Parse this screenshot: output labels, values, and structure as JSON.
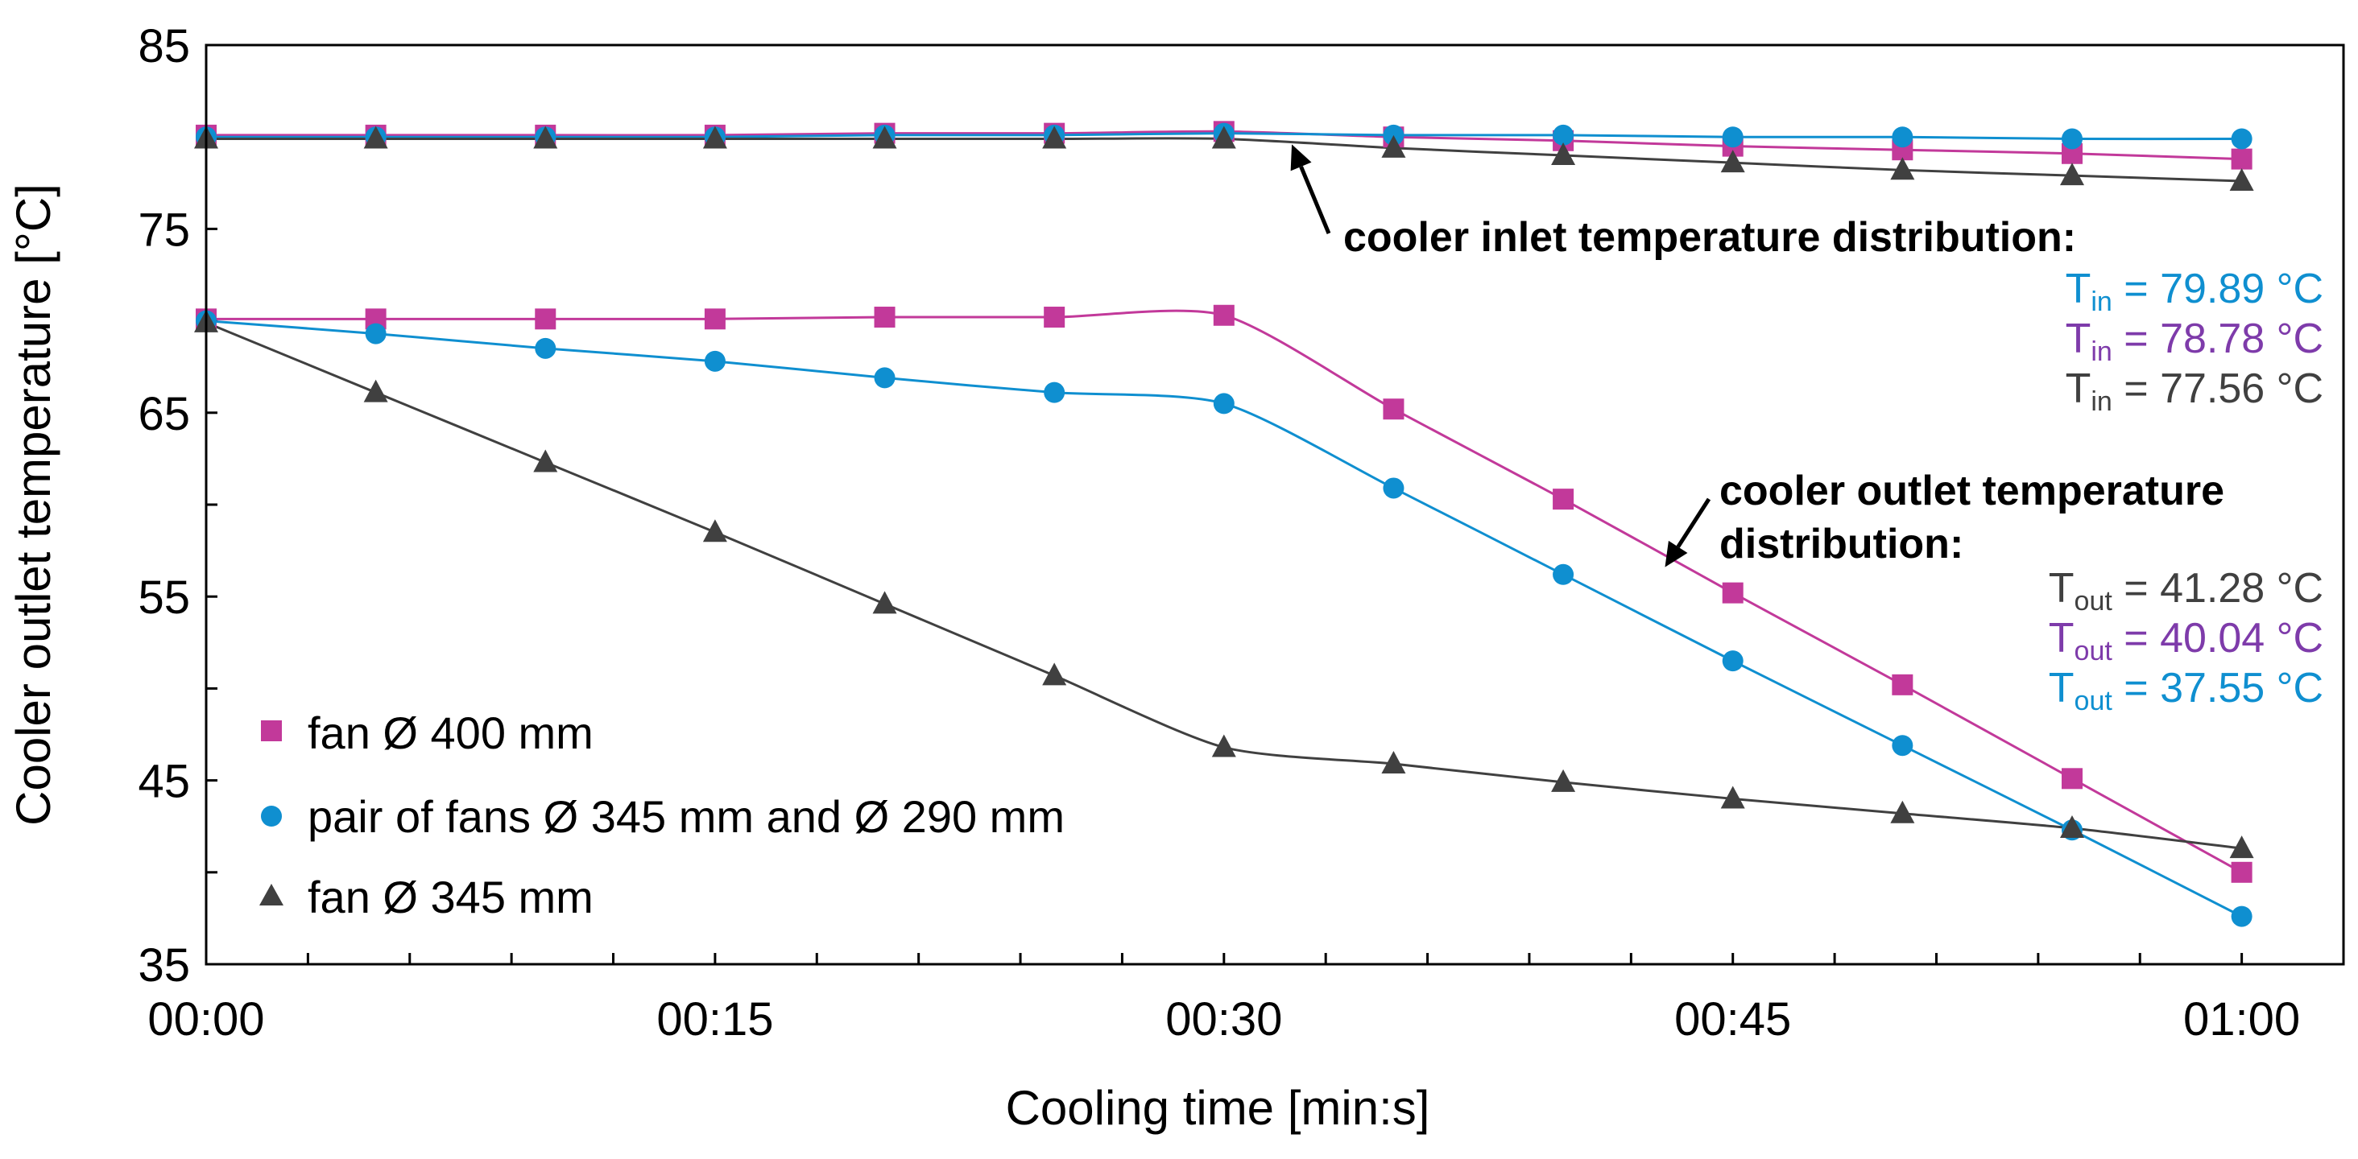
{
  "chart_data": {
    "type": "line",
    "xlabel": "Cooling time [min:s]",
    "ylabel": "Cooler outlet temperature [°C]",
    "xlim": [
      0,
      63
    ],
    "ylim": [
      35,
      85
    ],
    "x_ticks": [
      {
        "value": 0,
        "label": "00:00"
      },
      {
        "value": 15,
        "label": "00:15"
      },
      {
        "value": 30,
        "label": "00:30"
      },
      {
        "value": 45,
        "label": "00:45"
      },
      {
        "value": 60,
        "label": "01:00"
      }
    ],
    "x_minor_step": 3,
    "y_ticks": [
      {
        "value": 35,
        "label": "35"
      },
      {
        "value": 45,
        "label": "45"
      },
      {
        "value": 55,
        "label": "55"
      },
      {
        "value": 65,
        "label": "65"
      },
      {
        "value": 75,
        "label": "75"
      },
      {
        "value": 85,
        "label": "85"
      }
    ],
    "y_minor_step": 5,
    "x": [
      0,
      5,
      10,
      15,
      20,
      25,
      30,
      35,
      40,
      45,
      50,
      55,
      60
    ],
    "series": [
      {
        "name": "fan Ø 400 mm",
        "role": "inlet",
        "color": "#C2399A",
        "marker": "square",
        "values": [
          80.1,
          80.1,
          80.1,
          80.1,
          80.2,
          80.2,
          80.3,
          80.0,
          79.8,
          79.5,
          79.3,
          79.1,
          78.8
        ]
      },
      {
        "name": "pair of fans Ø 345 mm and Ø 290 mm",
        "role": "inlet",
        "color": "#0F8FD0",
        "marker": "circle",
        "values": [
          80.0,
          80.0,
          80.0,
          80.0,
          80.1,
          80.1,
          80.2,
          80.1,
          80.1,
          80.0,
          80.0,
          79.9,
          79.9
        ]
      },
      {
        "name": "fan Ø 345 mm",
        "role": "inlet",
        "color": "#404040",
        "marker": "triangle",
        "values": [
          79.9,
          79.9,
          79.9,
          79.9,
          79.9,
          79.9,
          79.9,
          79.4,
          79.0,
          78.6,
          78.2,
          77.9,
          77.6
        ]
      },
      {
        "name": "fan Ø 400 mm",
        "role": "outlet",
        "color": "#C2399A",
        "marker": "square",
        "values": [
          70.1,
          70.1,
          70.1,
          70.1,
          70.2,
          70.2,
          70.3,
          65.2,
          60.3,
          55.2,
          50.2,
          45.1,
          40.0
        ]
      },
      {
        "name": "pair of fans Ø 345 mm and Ø 290 mm",
        "role": "outlet",
        "color": "#0F8FD0",
        "marker": "circle",
        "values": [
          70.0,
          69.3,
          68.5,
          67.8,
          66.9,
          66.1,
          65.5,
          60.9,
          56.2,
          51.5,
          46.9,
          42.3,
          37.6
        ]
      },
      {
        "name": "fan Ø 345 mm",
        "role": "outlet",
        "color": "#404040",
        "marker": "triangle",
        "values": [
          69.9,
          66.1,
          62.3,
          58.5,
          54.6,
          50.7,
          46.8,
          45.9,
          44.9,
          44.0,
          43.2,
          42.4,
          41.3
        ]
      }
    ],
    "legend": {
      "position": "bottom-left",
      "entries": [
        {
          "label": "fan Ø 400 mm",
          "color": "#C2399A",
          "marker": "square"
        },
        {
          "label": "pair of fans Ø 345 mm and Ø 290 mm",
          "color": "#0F8FD0",
          "marker": "circle"
        },
        {
          "label": "fan Ø 345 mm",
          "color": "#404040",
          "marker": "triangle"
        }
      ]
    },
    "annotations": {
      "inlet": {
        "title": "cooler inlet temperature distribution:",
        "arrow_target": {
          "x": 32,
          "y": 79.6
        },
        "values": [
          {
            "sym": "T",
            "sub": "in",
            "rest": " = 79.89 °C",
            "color": "#0F8FD0"
          },
          {
            "sym": "T",
            "sub": "in",
            "rest": " = 78.78 °C",
            "color": "#7E3BAA"
          },
          {
            "sym": "T",
            "sub": "in",
            "rest": " = 77.56 °C",
            "color": "#404040"
          }
        ]
      },
      "outlet": {
        "title_line1": "cooler outlet temperature",
        "title_line2": "distribution:",
        "arrow_target": {
          "x": 43,
          "y": 56.6
        },
        "values": [
          {
            "sym": "T",
            "sub": "out",
            "rest": " = 41.28 °C",
            "color": "#404040"
          },
          {
            "sym": "T",
            "sub": "out",
            "rest": " = 40.04 °C",
            "color": "#7E3BAA"
          },
          {
            "sym": "T",
            "sub": "out",
            "rest": " = 37.55 °C",
            "color": "#0F8FD0"
          }
        ]
      }
    }
  }
}
